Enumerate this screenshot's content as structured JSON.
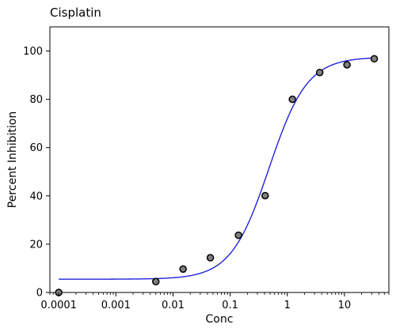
{
  "chart_data": {
    "type": "scatter",
    "title": "Cisplatin",
    "xlabel": "Conc",
    "ylabel": "Percent Inhibition",
    "x_scale": "log",
    "xlim": [
      7e-05,
      60
    ],
    "ylim": [
      0,
      110
    ],
    "x_ticks": [
      0.0001,
      0.001,
      0.01,
      0.1,
      1,
      10
    ],
    "x_tick_labels": [
      "0.0001",
      "0.001",
      "0.01",
      "0.1",
      "1",
      "10"
    ],
    "y_ticks": [
      0,
      20,
      40,
      60,
      80,
      100
    ],
    "y_tick_labels": [
      "0",
      "20",
      "40",
      "60",
      "80",
      "100"
    ],
    "grid": false,
    "points": {
      "x": [
        0.0001,
        0.005,
        0.015,
        0.045,
        0.14,
        0.41,
        1.23,
        3.7,
        11.1,
        33.3
      ],
      "y": [
        0,
        4.5,
        9.7,
        14.4,
        23.7,
        40.1,
        80.0,
        91.1,
        94.3,
        96.8
      ],
      "marker_color": "#808080",
      "edge_color": "#000000"
    },
    "fit_curve": {
      "model": "4PL",
      "bottom": 5.5,
      "top": 97.5,
      "ec50": 0.48,
      "hill": 1.3,
      "color": "#2222dd"
    }
  }
}
